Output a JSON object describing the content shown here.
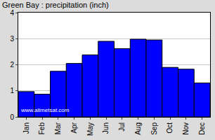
{
  "chart_data": {
    "type": "bar",
    "title": "Green Bay : precipitation (inch)",
    "categories": [
      "Jan",
      "Feb",
      "Mar",
      "Apr",
      "May",
      "Jun",
      "Jul",
      "Aug",
      "Sep",
      "Oct",
      "Nov",
      "Dec"
    ],
    "values": [
      0.97,
      0.87,
      1.75,
      2.05,
      2.38,
      2.9,
      2.62,
      2.98,
      2.95,
      1.9,
      1.83,
      1.3
    ],
    "color": "#0000ff",
    "ylim": [
      0,
      4
    ],
    "yticks": [
      0,
      1,
      2,
      3,
      4
    ],
    "grid": true,
    "annotations": [
      "www.allmetsat.com"
    ]
  }
}
